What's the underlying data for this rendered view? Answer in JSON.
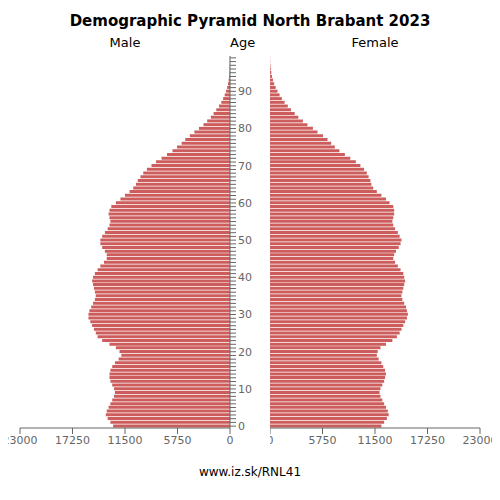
{
  "chart_data": {
    "type": "bar",
    "orientation": "horizontal",
    "title": "Demographic Pyramid North Brabant 2023",
    "subtitle": "www.iz.sk/RNL41",
    "y_label": "Age",
    "categories": [
      "0",
      null,
      null,
      null,
      null,
      null,
      null,
      null,
      null,
      null,
      "10",
      null,
      null,
      null,
      null,
      null,
      null,
      null,
      null,
      null,
      "20",
      null,
      null,
      null,
      null,
      null,
      null,
      null,
      null,
      null,
      "30",
      null,
      null,
      null,
      null,
      null,
      null,
      null,
      null,
      null,
      "40",
      null,
      null,
      null,
      null,
      null,
      null,
      null,
      null,
      null,
      "50",
      null,
      null,
      null,
      null,
      null,
      null,
      null,
      null,
      null,
      "60",
      null,
      null,
      null,
      null,
      null,
      null,
      null,
      null,
      null,
      "70",
      null,
      null,
      null,
      null,
      null,
      null,
      null,
      null,
      null,
      "80",
      null,
      null,
      null,
      null,
      null,
      null,
      null,
      null,
      null,
      "90",
      null,
      null,
      null,
      null,
      null,
      null,
      null,
      null,
      null
    ],
    "series": [
      {
        "name": "Male",
        "color": "#cd5c5c",
        "values": [
          12800,
          13100,
          13400,
          13600,
          13500,
          13300,
          13100,
          12900,
          12700,
          12600,
          12700,
          12900,
          13100,
          13200,
          13200,
          13100,
          12900,
          12600,
          12200,
          11900,
          12100,
          12500,
          13200,
          14000,
          14500,
          14700,
          14900,
          15100,
          15300,
          15500,
          15500,
          15400,
          15200,
          15000,
          14800,
          14700,
          14800,
          14900,
          15000,
          15100,
          15000,
          14800,
          14500,
          14200,
          13800,
          13500,
          13500,
          13700,
          14000,
          14200,
          14200,
          14000,
          13700,
          13400,
          13200,
          13100,
          13200,
          13300,
          13200,
          13000,
          12500,
          12000,
          11500,
          11000,
          10600,
          10300,
          10100,
          9800,
          9500,
          9100,
          8600,
          8100,
          7500,
          6900,
          6300,
          5800,
          5300,
          4900,
          4400,
          3900,
          3400,
          2900,
          2500,
          2100,
          1800,
          1500,
          1200,
          950,
          750,
          580,
          430,
          310,
          220,
          150,
          100,
          65,
          40,
          22,
          12,
          5
        ]
      },
      {
        "name": "Female",
        "color": "#cd5c5c",
        "values": [
          12200,
          12500,
          12800,
          13000,
          12900,
          12700,
          12500,
          12300,
          12100,
          12000,
          12100,
          12300,
          12500,
          12600,
          12700,
          12600,
          12400,
          12200,
          11900,
          11700,
          11800,
          12100,
          12700,
          13400,
          13900,
          14200,
          14400,
          14600,
          14800,
          15000,
          15100,
          15000,
          14900,
          14700,
          14500,
          14400,
          14500,
          14600,
          14700,
          14800,
          14700,
          14600,
          14300,
          14000,
          13700,
          13500,
          13600,
          13800,
          14100,
          14300,
          14400,
          14200,
          14000,
          13700,
          13500,
          13400,
          13500,
          13600,
          13600,
          13500,
          13100,
          12700,
          12200,
          11700,
          11300,
          11100,
          11000,
          10800,
          10600,
          10300,
          9900,
          9400,
          8800,
          8200,
          7600,
          7100,
          6700,
          6300,
          5800,
          5200,
          4700,
          4100,
          3600,
          3100,
          2700,
          2300,
          1950,
          1600,
          1300,
          1050,
          820,
          620,
          460,
          330,
          220,
          140,
          85,
          48,
          25,
          12
        ]
      }
    ],
    "xlim": [
      0,
      23000
    ],
    "xticks": [
      0,
      5750,
      11500,
      17250,
      23000
    ],
    "grid": false
  }
}
